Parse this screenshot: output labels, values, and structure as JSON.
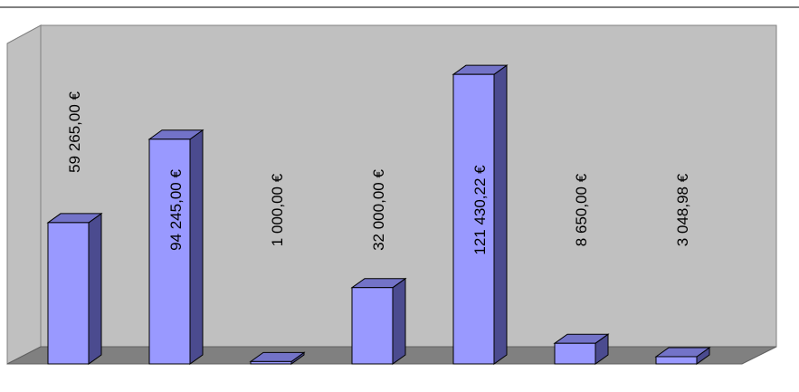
{
  "chart_data": {
    "type": "bar3d",
    "categories": [
      null,
      null,
      null,
      null,
      null,
      null,
      null
    ],
    "values": [
      59265,
      94245,
      1000,
      32000,
      121430.22,
      8650,
      3048.98
    ],
    "value_labels": [
      "59 265,00 €",
      "94 245,00 €",
      "1 000,00 €",
      "32 000,00 €",
      "121 430,22 €",
      "8 650,00 €",
      "3 048,98 €"
    ],
    "color": "#9999ff",
    "ylim": [
      0,
      142000
    ]
  }
}
